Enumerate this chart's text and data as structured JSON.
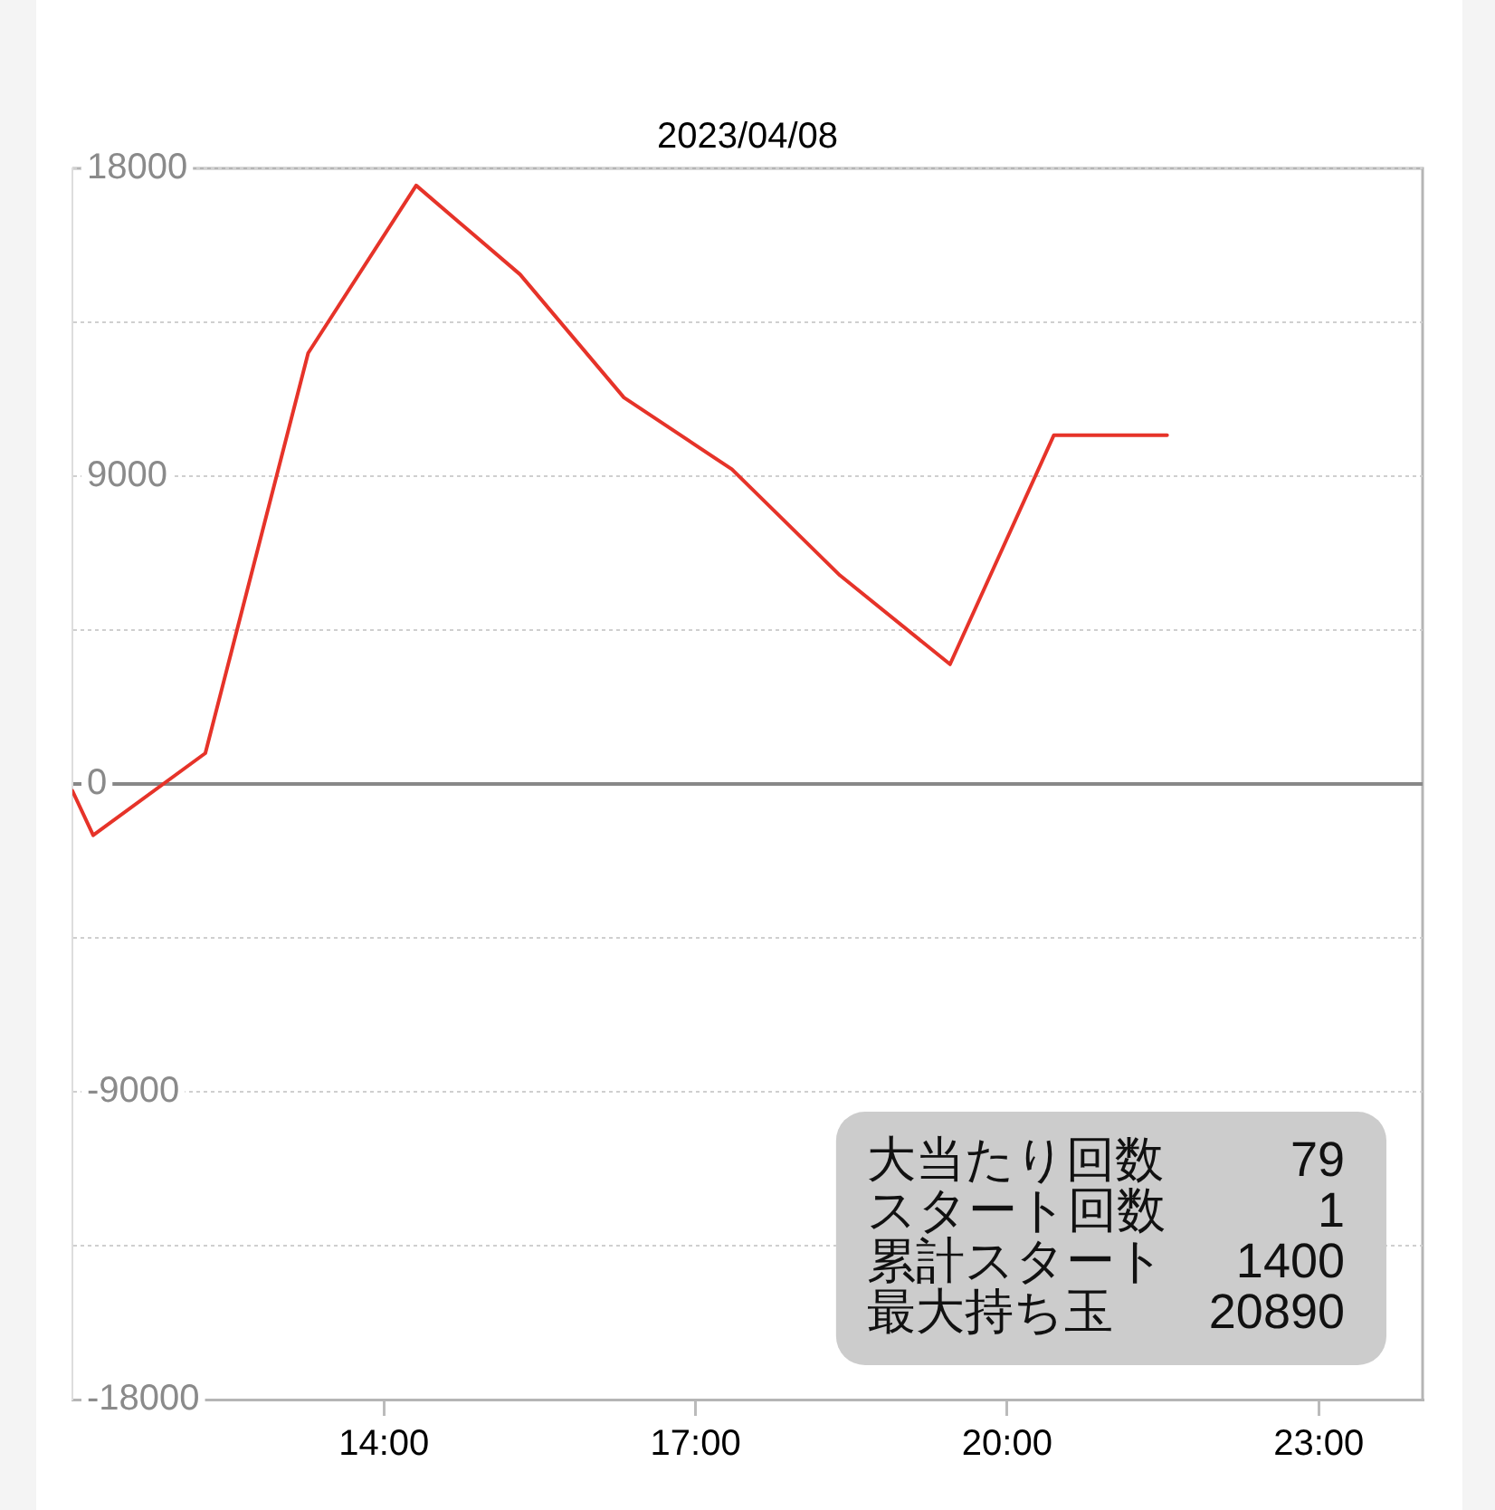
{
  "chart_data": {
    "type": "line",
    "title": "2023/04/08",
    "x": [
      11,
      11.2,
      12.28,
      13.27,
      14.31,
      15.31,
      16.31,
      17.35,
      18.39,
      19.45,
      20.45,
      21.54
    ],
    "series": [
      {
        "color": "#e63329",
        "values": [
          -200,
          -1500,
          900,
          12600,
          17500,
          14900,
          11300,
          9200,
          6100,
          3500,
          10200,
          10200
        ]
      }
    ],
    "xlim": [
      11,
      24
    ],
    "xticks": [
      {
        "value": 14,
        "label": "14:00"
      },
      {
        "value": 17,
        "label": "17:00"
      },
      {
        "value": 20,
        "label": "20:00"
      },
      {
        "value": 23,
        "label": "23:00"
      }
    ],
    "ylim": [
      -18000,
      18000
    ],
    "yticks": [
      -18000,
      {
        "value": -13500,
        "label": null
      },
      -9000,
      {
        "value": -4500,
        "label": null
      },
      0,
      {
        "value": 4500,
        "label": null
      },
      9000,
      {
        "value": 13500,
        "label": null
      },
      18000
    ],
    "grid": "y",
    "ref_lines": [
      {
        "axis": "y",
        "value": 0,
        "color": "#888888"
      }
    ],
    "marker": "none",
    "line_style": "solid",
    "annotations": [
      "大当たり回数 79",
      "スタート回数 1",
      "累計スタート 1400",
      "最大持ち玉 20890"
    ]
  }
}
